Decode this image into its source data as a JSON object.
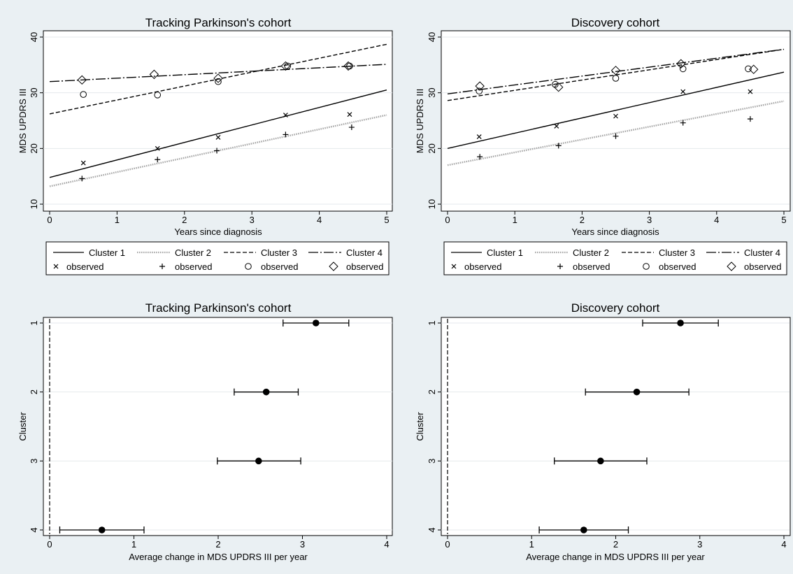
{
  "chart_data": [
    {
      "id": "tracking_trajectories",
      "type": "line",
      "title": "Tracking Parkinson's cohort",
      "xlabel": "Years since diagnosis",
      "ylabel": "MDS UPDRS III",
      "xlim": [
        0,
        5
      ],
      "ylim": [
        10,
        40
      ],
      "xticks": [
        0,
        1,
        2,
        3,
        4,
        5
      ],
      "yticks": [
        10,
        20,
        30,
        40
      ],
      "grid": true,
      "series": [
        {
          "name": "Cluster 1",
          "line": "solid",
          "x": [
            0,
            5
          ],
          "y": [
            14.8,
            30.5
          ]
        },
        {
          "name": "Cluster 2",
          "line": "dotted",
          "x": [
            0,
            5
          ],
          "y": [
            13.2,
            26.0
          ]
        },
        {
          "name": "Cluster 3",
          "line": "dash",
          "x": [
            0,
            5
          ],
          "y": [
            26.2,
            38.7
          ]
        },
        {
          "name": "Cluster 4",
          "line": "longdash",
          "x": [
            0,
            5
          ],
          "y": [
            32.0,
            35.1
          ]
        }
      ],
      "observed": [
        {
          "name": "observed",
          "marker": "x",
          "x": [
            0.5,
            1.6,
            2.5,
            3.5,
            4.45
          ],
          "y": [
            17.4,
            20.0,
            22.0,
            26.0,
            26.1
          ]
        },
        {
          "name": "observed",
          "marker": "plus",
          "x": [
            0.48,
            1.6,
            2.48,
            3.5,
            4.48
          ],
          "y": [
            14.6,
            18.0,
            19.6,
            22.5,
            23.8
          ]
        },
        {
          "name": "observed",
          "marker": "circle",
          "x": [
            0.5,
            1.6,
            2.5,
            3.53,
            4.45
          ],
          "y": [
            29.7,
            29.6,
            32.0,
            34.8,
            34.8
          ]
        },
        {
          "name": "observed",
          "marker": "diamond",
          "x": [
            0.48,
            1.55,
            2.5,
            3.5,
            4.43
          ],
          "y": [
            32.3,
            33.3,
            32.6,
            34.8,
            34.8
          ]
        }
      ],
      "legend": {
        "position": "bottom",
        "line_labels": [
          "Cluster 1",
          "Cluster 2",
          "Cluster 3",
          "Cluster 4"
        ],
        "marker_label": "observed"
      }
    },
    {
      "id": "discovery_trajectories",
      "type": "line",
      "title": "Discovery cohort",
      "xlabel": "Years since diagnosis",
      "ylabel": "MDS UPDRS III",
      "xlim": [
        0,
        5
      ],
      "ylim": [
        10,
        40
      ],
      "xticks": [
        0,
        1,
        2,
        3,
        4,
        5
      ],
      "yticks": [
        10,
        20,
        30,
        40
      ],
      "grid": true,
      "series": [
        {
          "name": "Cluster 1",
          "line": "solid",
          "x": [
            0,
            5
          ],
          "y": [
            20.0,
            33.7
          ]
        },
        {
          "name": "Cluster 2",
          "line": "dotted",
          "x": [
            0,
            5
          ],
          "y": [
            17.0,
            28.5
          ]
        },
        {
          "name": "Cluster 3",
          "line": "dash",
          "x": [
            0,
            5
          ],
          "y": [
            28.6,
            37.8
          ]
        },
        {
          "name": "Cluster 4",
          "line": "longdash",
          "x": [
            0,
            5
          ],
          "y": [
            29.8,
            37.8
          ]
        }
      ],
      "observed": [
        {
          "name": "observed",
          "marker": "x",
          "x": [
            0.47,
            1.62,
            2.5,
            3.5,
            4.5
          ],
          "y": [
            22.1,
            24.0,
            25.8,
            30.2,
            30.2
          ]
        },
        {
          "name": "observed",
          "marker": "plus",
          "x": [
            0.48,
            1.65,
            2.5,
            3.5,
            4.5
          ],
          "y": [
            18.5,
            20.5,
            22.2,
            24.6,
            25.3
          ]
        },
        {
          "name": "observed",
          "marker": "circle",
          "x": [
            0.47,
            1.6,
            2.5,
            3.5,
            4.47
          ],
          "y": [
            30.3,
            31.5,
            32.6,
            34.3,
            34.3
          ]
        },
        {
          "name": "observed",
          "marker": "diamond",
          "x": [
            0.48,
            1.65,
            2.5,
            3.47,
            4.55
          ],
          "y": [
            31.2,
            31.0,
            34.0,
            35.2,
            34.2
          ]
        }
      ],
      "legend": {
        "position": "bottom",
        "line_labels": [
          "Cluster 1",
          "Cluster 2",
          "Cluster 3",
          "Cluster 4"
        ],
        "marker_label": "observed"
      }
    },
    {
      "id": "tracking_slopes",
      "type": "scatter",
      "subtype": "dot-whisker",
      "title": "Tracking Parkinson's cohort",
      "xlabel": "Average change in MDS UPDRS III per year",
      "ylabel": "Cluster",
      "xlim": [
        0,
        4
      ],
      "xticks": [
        0,
        1,
        2,
        3,
        4
      ],
      "categories": [
        "1",
        "2",
        "3",
        "4"
      ],
      "reference_line_x": 0,
      "estimates": [
        3.16,
        2.57,
        2.48,
        0.62
      ],
      "ci_low": [
        2.77,
        2.19,
        1.99,
        0.12
      ],
      "ci_high": [
        3.55,
        2.95,
        2.98,
        1.12
      ]
    },
    {
      "id": "discovery_slopes",
      "type": "scatter",
      "subtype": "dot-whisker",
      "title": "Discovery cohort",
      "xlabel": "Average change in MDS UPDRS III per year",
      "ylabel": "Cluster",
      "xlim": [
        0,
        4
      ],
      "xticks": [
        0,
        1,
        2,
        3,
        4
      ],
      "categories": [
        "1",
        "2",
        "3",
        "4"
      ],
      "reference_line_x": 0,
      "estimates": [
        2.77,
        2.25,
        1.82,
        1.62
      ],
      "ci_low": [
        2.32,
        1.64,
        1.27,
        1.09
      ],
      "ci_high": [
        3.22,
        2.87,
        2.37,
        2.15
      ]
    }
  ]
}
